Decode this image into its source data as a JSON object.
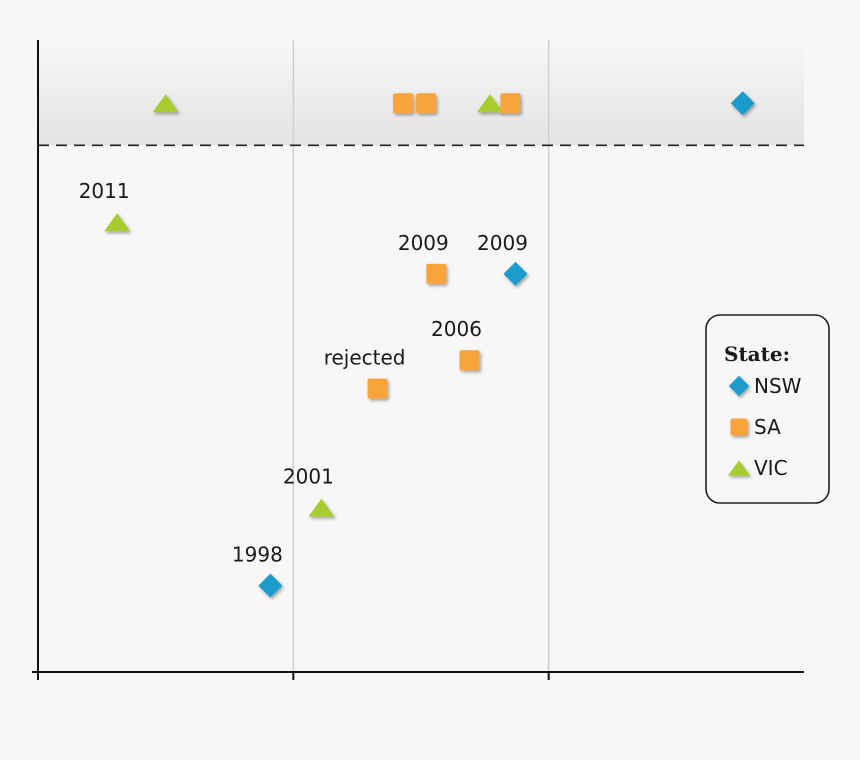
{
  "chart_data": {
    "type": "scatter",
    "title": "",
    "xlabel": "",
    "ylabel": "",
    "xlim": [
      0,
      3
    ],
    "ylim": [
      0,
      6
    ],
    "grid": true,
    "legend_position": "right",
    "legend_title": "State:",
    "colors": {
      "NSW": "#1b9ccd",
      "SA": "#f8a43a",
      "VIC": "#a8cc2e"
    },
    "band": {
      "ymin": 5,
      "ymax": 6
    },
    "points": [
      {
        "series": "VIC",
        "x": 0.5,
        "y": 5.4,
        "label": ""
      },
      {
        "series": "SA",
        "x": 1.43,
        "y": 5.4,
        "label": ""
      },
      {
        "series": "SA",
        "x": 1.52,
        "y": 5.4,
        "label": ""
      },
      {
        "series": "VIC",
        "x": 1.77,
        "y": 5.4,
        "label": ""
      },
      {
        "series": "SA",
        "x": 1.85,
        "y": 5.4,
        "label": ""
      },
      {
        "series": "NSW",
        "x": 2.76,
        "y": 5.4,
        "label": ""
      },
      {
        "series": "VIC",
        "x": 0.31,
        "y": 4.27,
        "label": "2011"
      },
      {
        "series": "SA",
        "x": 1.56,
        "y": 3.78,
        "label": "2009"
      },
      {
        "series": "NSW",
        "x": 1.87,
        "y": 3.78,
        "label": "2009"
      },
      {
        "series": "SA",
        "x": 1.69,
        "y": 2.96,
        "label": "2006"
      },
      {
        "series": "SA",
        "x": 1.33,
        "y": 2.69,
        "label": "rejected"
      },
      {
        "series": "VIC",
        "x": 1.11,
        "y": 1.56,
        "label": "2001"
      },
      {
        "series": "NSW",
        "x": 0.91,
        "y": 0.82,
        "label": "1998"
      }
    ],
    "legend": [
      {
        "series": "NSW",
        "label": "NSW"
      },
      {
        "series": "SA",
        "label": "SA"
      },
      {
        "series": "VIC",
        "label": "VIC"
      }
    ]
  }
}
